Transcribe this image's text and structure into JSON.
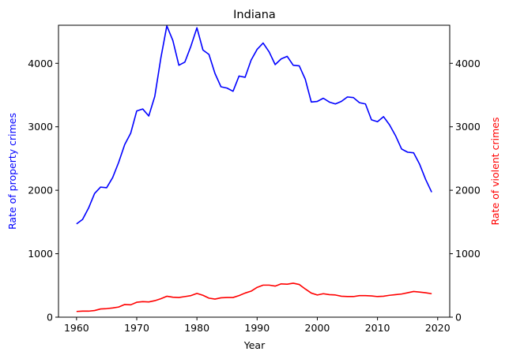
{
  "chart_data": {
    "type": "line",
    "title": "Indiana",
    "xlabel": "Year",
    "ylabel_left": "Rate of property crimes",
    "ylabel_right": "Rate of violent crimes",
    "xlim": [
      1957,
      2022
    ],
    "ylim_left": [
      0,
      4600
    ],
    "ylim_right": [
      0,
      4600
    ],
    "x_ticks": [
      1960,
      1970,
      1980,
      1990,
      2000,
      2010,
      2020
    ],
    "y_ticks_left": [
      0,
      1000,
      2000,
      3000,
      4000
    ],
    "y_ticks_right": [
      0,
      1000,
      2000,
      3000,
      4000
    ],
    "grid": false,
    "colors": {
      "property": "#0000ff",
      "violent": "#ff0000",
      "axis": "#000000"
    },
    "x": [
      1960,
      1961,
      1962,
      1963,
      1964,
      1965,
      1966,
      1967,
      1968,
      1969,
      1970,
      1971,
      1972,
      1973,
      1974,
      1975,
      1976,
      1977,
      1978,
      1979,
      1980,
      1981,
      1982,
      1983,
      1984,
      1985,
      1986,
      1987,
      1988,
      1989,
      1990,
      1991,
      1992,
      1993,
      1994,
      1995,
      1996,
      1997,
      1998,
      1999,
      2000,
      2001,
      2002,
      2003,
      2004,
      2005,
      2006,
      2007,
      2008,
      2009,
      2010,
      2011,
      2012,
      2013,
      2014,
      2015,
      2016,
      2017,
      2018,
      2019
    ],
    "series": [
      {
        "axis": "left",
        "color": "#0000ff",
        "values": [
          1470,
          1540,
          1720,
          1950,
          2050,
          2040,
          2200,
          2440,
          2720,
          2900,
          3250,
          3280,
          3170,
          3480,
          4080,
          4590,
          4360,
          3970,
          4020,
          4270,
          4560,
          4210,
          4140,
          3840,
          3630,
          3610,
          3560,
          3800,
          3780,
          4050,
          4220,
          4320,
          4180,
          3980,
          4070,
          4110,
          3970,
          3960,
          3750,
          3390,
          3400,
          3450,
          3390,
          3360,
          3400,
          3470,
          3460,
          3380,
          3360,
          3110,
          3080,
          3160,
          3030,
          2860,
          2650,
          2600,
          2590,
          2410,
          2170,
          1970
        ]
      },
      {
        "axis": "right",
        "color": "#ff0000",
        "values": [
          90,
          95,
          95,
          105,
          130,
          135,
          145,
          160,
          200,
          195,
          235,
          245,
          240,
          260,
          290,
          330,
          315,
          310,
          325,
          340,
          375,
          345,
          300,
          285,
          305,
          310,
          310,
          340,
          380,
          410,
          470,
          505,
          505,
          490,
          525,
          520,
          535,
          515,
          445,
          380,
          350,
          370,
          355,
          350,
          330,
          325,
          325,
          340,
          340,
          335,
          325,
          330,
          345,
          355,
          365,
          385,
          405,
          395,
          385,
          370
        ]
      }
    ]
  }
}
